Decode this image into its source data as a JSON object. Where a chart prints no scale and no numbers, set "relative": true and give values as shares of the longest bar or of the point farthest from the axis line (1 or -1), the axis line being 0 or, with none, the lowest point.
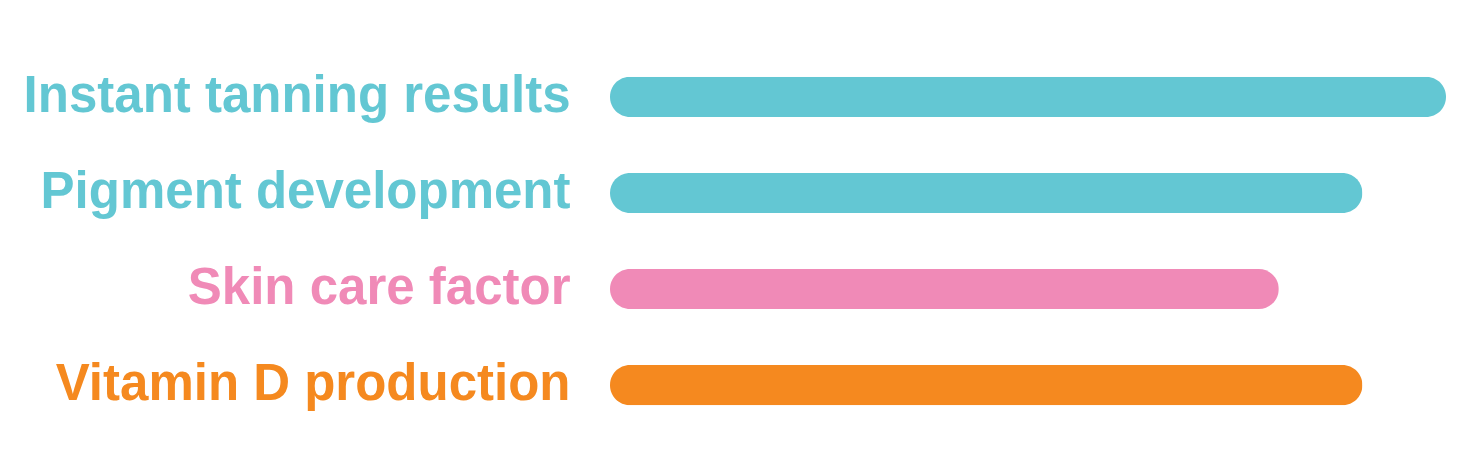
{
  "chart_data": {
    "type": "bar",
    "orientation": "horizontal",
    "relative": true,
    "categories": [
      "Instant tanning results",
      "Pigment development",
      "Skin care factor",
      "Vitamin D production"
    ],
    "values": [
      1,
      0.9,
      0.8,
      0.9
    ],
    "colors": [
      "#63c7d3",
      "#63c7d3",
      "#f08ab7",
      "#f5891f"
    ]
  }
}
